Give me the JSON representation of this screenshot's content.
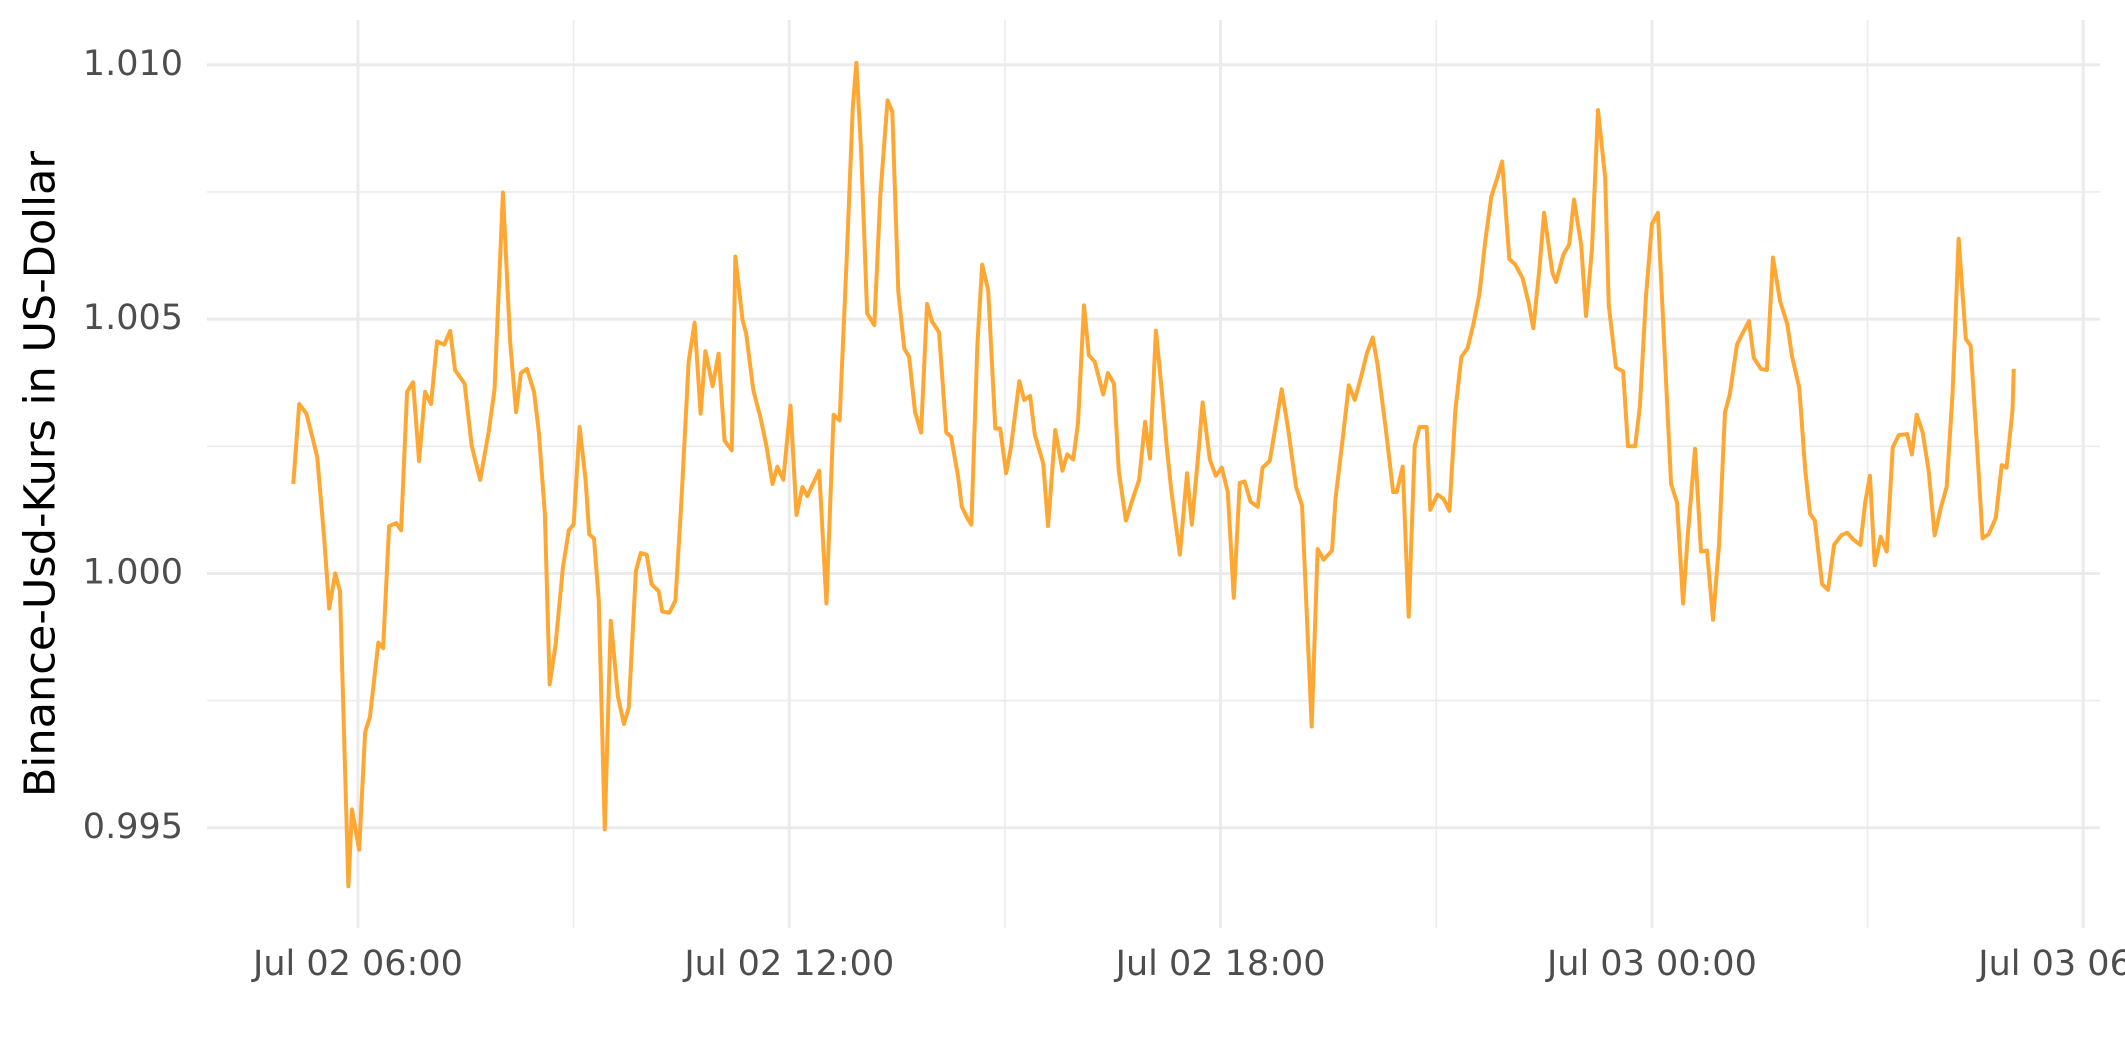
{
  "chart_data": {
    "type": "line",
    "y_label": "Binance-Usd-Kurs in US-Dollar",
    "color": "#ffa733",
    "grid": true,
    "xlim": [
      "Jul 02 03:54",
      "Jul 03 06:14"
    ],
    "xticks": [
      "Jul 02 06:00",
      "Jul 02 12:00",
      "Jul 02 18:00",
      "Jul 03 00:00",
      "Jul 03 06:00"
    ],
    "ylim": [
      0.99303,
      1.01088
    ],
    "yticks": [
      0.995,
      {
        "value": 1,
        "label": "1.000"
      },
      1.005,
      {
        "value": 1.01,
        "label": "1.010"
      }
    ],
    "x": [
      "Jul 02 05:06",
      "Jul 02 05:11",
      "Jul 02 05:17",
      "Jul 02 05:23",
      "Jul 02 05:26",
      "Jul 02 05:32",
      "Jul 02 05:36",
      "Jul 02 05:41",
      "Jul 02 05:45",
      "Jul 02 05:52",
      "Jul 02 05:55",
      "Jul 02 06:01",
      "Jul 02 06:06",
      "Jul 02 06:10",
      "Jul 02 06:17",
      "Jul 02 06:21",
      "Jul 02 06:26",
      "Jul 02 06:32",
      "Jul 02 06:36",
      "Jul 02 06:41",
      "Jul 02 06:46",
      "Jul 02 06:51",
      "Jul 02 06:56",
      "Jul 02 07:01",
      "Jul 02 07:06",
      "Jul 02 07:12",
      "Jul 02 07:17",
      "Jul 02 07:21",
      "Jul 02 07:29",
      "Jul 02 07:35",
      "Jul 02 07:42",
      "Jul 02 07:49",
      "Jul 02 07:54",
      "Jul 02 08:01",
      "Jul 02 08:07",
      "Jul 02 08:12",
      "Jul 02 08:16",
      "Jul 02 08:21",
      "Jul 02 08:27",
      "Jul 02 08:31",
      "Jul 02 08:36",
      "Jul 02 08:40",
      "Jul 02 08:45",
      "Jul 02 08:51",
      "Jul 02 08:56",
      "Jul 02 09:00",
      "Jul 02 09:05",
      "Jul 02 09:10",
      "Jul 02 09:13",
      "Jul 02 09:17",
      "Jul 02 09:21",
      "Jul 02 09:26",
      "Jul 02 09:31",
      "Jul 02 09:37",
      "Jul 02 09:42",
      "Jul 02 09:46",
      "Jul 02 09:52",
      "Jul 02 09:56",
      "Jul 02 10:01",
      "Jul 02 10:05",
      "Jul 02 10:11",
      "Jul 02 10:14",
      "Jul 02 10:20",
      "Jul 02 10:25",
      "Jul 02 10:30",
      "Jul 02 10:36",
      "Jul 02 10:41",
      "Jul 02 10:46",
      "Jul 02 10:50",
      "Jul 02 10:56",
      "Jul 02 11:01",
      "Jul 02 11:06",
      "Jul 02 11:12",
      "Jul 02 11:15",
      "Jul 02 11:21",
      "Jul 02 11:24",
      "Jul 02 11:30",
      "Jul 02 11:36",
      "Jul 02 11:41",
      "Jul 02 11:46",
      "Jul 02 11:50",
      "Jul 02 11:55",
      "Jul 02 12:01",
      "Jul 02 12:06",
      "Jul 02 12:11",
      "Jul 02 12:15",
      "Jul 02 12:25",
      "Jul 02 12:31",
      "Jul 02 12:37",
      "Jul 02 12:42",
      "Jul 02 12:48",
      "Jul 02 12:53",
      "Jul 02 12:56",
      "Jul 02 13:00",
      "Jul 02 13:05",
      "Jul 02 13:11",
      "Jul 02 13:16",
      "Jul 02 13:22",
      "Jul 02 13:26",
      "Jul 02 13:31",
      "Jul 02 13:36",
      "Jul 02 13:40",
      "Jul 02 13:45",
      "Jul 02 13:50",
      "Jul 02 13:55",
      "Jul 02 13:59",
      "Jul 02 14:05",
      "Jul 02 14:11",
      "Jul 02 14:15",
      "Jul 02 14:21",
      "Jul 02 14:24",
      "Jul 02 14:29",
      "Jul 02 14:32",
      "Jul 02 14:37",
      "Jul 02 14:41",
      "Jul 02 14:46",
      "Jul 02 14:52",
      "Jul 02 14:56",
      "Jul 02 15:01",
      "Jul 02 15:05",
      "Jul 02 15:12",
      "Jul 02 15:16",
      "Jul 02 15:21",
      "Jul 02 15:25",
      "Jul 02 15:32",
      "Jul 02 15:36",
      "Jul 02 15:42",
      "Jul 02 15:48",
      "Jul 02 15:52",
      "Jul 02 15:57",
      "Jul 02 16:01",
      "Jul 02 16:06",
      "Jul 02 16:10",
      "Jul 02 16:15",
      "Jul 02 16:22",
      "Jul 02 16:26",
      "Jul 02 16:31",
      "Jul 02 16:35",
      "Jul 02 16:41",
      "Jul 02 16:47",
      "Jul 02 16:52",
      "Jul 02 16:57",
      "Jul 02 17:01",
      "Jul 02 17:06",
      "Jul 02 17:11",
      "Jul 02 17:15",
      "Jul 02 17:19",
      "Jul 02 17:26",
      "Jul 02 17:32",
      "Jul 02 17:36",
      "Jul 02 17:41",
      "Jul 02 17:45",
      "Jul 02 17:51",
      "Jul 02 17:56",
      "Jul 02 18:01",
      "Jul 02 18:06",
      "Jul 02 18:11",
      "Jul 02 18:16",
      "Jul 02 18:20",
      "Jul 02 18:25",
      "Jul 02 18:31",
      "Jul 02 18:35",
      "Jul 02 18:41",
      "Jul 02 18:45",
      "Jul 02 18:51",
      "Jul 02 18:56",
      "Jul 02 19:03",
      "Jul 02 19:08",
      "Jul 02 19:16",
      "Jul 02 19:21",
      "Jul 02 19:26",
      "Jul 02 19:33",
      "Jul 02 19:36",
      "Jul 02 19:42",
      "Jul 02 19:47",
      "Jul 02 19:52",
      "Jul 02 19:57",
      "Jul 02 20:02",
      "Jul 02 20:07",
      "Jul 02 20:11",
      "Jul 02 20:18",
      "Jul 02 20:24",
      "Jul 02 20:27",
      "Jul 02 20:32",
      "Jul 02 20:37",
      "Jul 02 20:42",
      "Jul 02 20:46",
      "Jul 02 20:52",
      "Jul 02 20:55",
      "Jul 02 21:01",
      "Jul 02 21:06",
      "Jul 02 21:11",
      "Jul 02 21:16",
      "Jul 02 21:21",
      "Jul 02 21:26",
      "Jul 02 21:31",
      "Jul 02 21:36",
      "Jul 02 21:41",
      "Jul 02 21:46",
      "Jul 02 21:51",
      "Jul 02 21:55",
      "Jul 02 22:01",
      "Jul 02 22:06",
      "Jul 02 22:12",
      "Jul 02 22:17",
      "Jul 02 22:21",
      "Jul 02 22:26",
      "Jul 02 22:30",
      "Jul 02 22:37",
      "Jul 02 22:40",
      "Jul 02 22:46",
      "Jul 02 22:51",
      "Jul 02 22:55",
      "Jul 02 23:01",
      "Jul 02 23:05",
      "Jul 02 23:10",
      "Jul 02 23:15",
      "Jul 02 23:21",
      "Jul 02 23:24",
      "Jul 02 23:30",
      "Jul 02 23:36",
      "Jul 02 23:40",
      "Jul 02 23:46",
      "Jul 02 23:50",
      "Jul 02 23:55",
      "Jul 03 00:00",
      "Jul 03 00:05",
      "Jul 03 00:11",
      "Jul 03 00:16",
      "Jul 03 00:21",
      "Jul 03 00:26",
      "Jul 03 00:30",
      "Jul 03 00:36",
      "Jul 03 00:41",
      "Jul 03 00:46",
      "Jul 03 00:51",
      "Jul 03 00:56",
      "Jul 03 01:01",
      "Jul 03 01:05",
      "Jul 03 01:11",
      "Jul 03 01:15",
      "Jul 03 01:21",
      "Jul 03 01:25",
      "Jul 03 01:31",
      "Jul 03 01:36",
      "Jul 03 01:41",
      "Jul 03 01:47",
      "Jul 03 01:53",
      "Jul 03 01:57",
      "Jul 03 02:03",
      "Jul 03 02:08",
      "Jul 03 02:12",
      "Jul 03 02:16",
      "Jul 03 02:22",
      "Jul 03 02:27",
      "Jul 03 02:32",
      "Jul 03 02:38",
      "Jul 03 02:43",
      "Jul 03 02:48",
      "Jul 03 02:54",
      "Jul 03 02:58",
      "Jul 03 03:02",
      "Jul 03 03:06",
      "Jul 03 03:11",
      "Jul 03 03:16",
      "Jul 03 03:21",
      "Jul 03 03:26",
      "Jul 03 03:33",
      "Jul 03 03:37",
      "Jul 03 03:41",
      "Jul 03 03:46",
      "Jul 03 03:51",
      "Jul 03 03:56",
      "Jul 03 04:01",
      "Jul 03 04:06",
      "Jul 03 04:11",
      "Jul 03 04:16",
      "Jul 03 04:22",
      "Jul 03 04:26",
      "Jul 03 04:32",
      "Jul 03 04:36",
      "Jul 03 04:41",
      "Jul 03 04:47",
      "Jul 03 04:52",
      "Jul 03 04:56",
      "Jul 03 05:01",
      "Jul 03 05:02"
    ],
    "values": [
      1.00176,
      1.00333,
      1.00314,
      1.00258,
      1.00229,
      1.00064,
      0.99931,
      1.0,
      0.99965,
      0.99385,
      0.99536,
      0.99457,
      0.99688,
      0.99718,
      0.99864,
      0.99853,
      1.00093,
      1.00099,
      1.00085,
      1.00357,
      1.00376,
      1.00221,
      1.00357,
      1.00333,
      1.00456,
      1.0045,
      1.00477,
      1.004,
      1.00373,
      1.0025,
      1.00184,
      1.00277,
      1.00362,
      1.00749,
      1.00456,
      1.00317,
      1.00394,
      1.00402,
      1.00357,
      1.00277,
      1.00117,
      0.99782,
      0.99861,
      1.00011,
      1.00085,
      1.00096,
      1.00288,
      1.00184,
      1.00077,
      1.00069,
      0.99947,
      0.99497,
      0.99907,
      0.99758,
      0.99704,
      0.99736,
      1.00005,
      1.0004,
      1.00037,
      0.99979,
      0.99965,
      0.99925,
      0.99923,
      0.99947,
      1.00144,
      1.00416,
      1.00493,
      1.00314,
      1.00437,
      1.00368,
      1.00432,
      1.00261,
      1.00242,
      1.00623,
      1.00498,
      1.00472,
      1.0036,
      1.00306,
      1.0025,
      1.00176,
      1.0021,
      1.00184,
      1.0033,
      1.00115,
      1.0017,
      1.00152,
      1.00202,
      0.99941,
      1.00312,
      1.00301,
      1.00623,
      1.00916,
      1.01004,
      1.00829,
      1.00511,
      1.00488,
      1.00743,
      1.0093,
      1.00908,
      1.00554,
      1.00442,
      1.00426,
      1.00317,
      1.00277,
      1.0053,
      1.00496,
      1.00474,
      1.00277,
      1.00269,
      1.00189,
      1.00131,
      1.00107,
      1.00096,
      1.0045,
      1.00607,
      1.00557,
      1.00285,
      1.00285,
      1.00197,
      1.00248,
      1.00378,
      1.00341,
      1.00349,
      1.00272,
      1.00216,
      1.00093,
      1.00282,
      1.00202,
      1.00234,
      1.00224,
      1.00296,
      1.00527,
      1.00429,
      1.00416,
      1.00352,
      1.00394,
      1.00373,
      1.00202,
      1.00104,
      1.00149,
      1.00184,
      1.00298,
      1.00226,
      1.00477,
      1.00357,
      1.0025,
      1.0016,
      1.00037,
      1.00197,
      1.00096,
      1.00224,
      1.00336,
      1.00224,
      1.00192,
      1.00208,
      1.0016,
      0.99952,
      1.00178,
      1.00181,
      1.00141,
      1.00131,
      1.00208,
      1.00221,
      1.00277,
      1.00362,
      1.0029,
      1.0017,
      1.00133,
      0.99699,
      1.00048,
      1.00027,
      1.00045,
      1.00149,
      1.00266,
      1.0037,
      1.00341,
      1.00384,
      1.00432,
      1.00464,
      1.0041,
      1.00282,
      1.0016,
      1.0016,
      1.0021,
      0.99915,
      1.0025,
      1.00288,
      1.00288,
      1.00125,
      1.00155,
      1.00147,
      1.00123,
      1.00322,
      1.00426,
      1.00442,
      1.0049,
      1.00549,
      1.00655,
      1.00741,
      1.00778,
      1.0081,
      1.00618,
      1.00607,
      1.00581,
      1.00533,
      1.00482,
      1.00597,
      1.00709,
      1.00591,
      1.00573,
      1.00626,
      1.00647,
      1.00735,
      1.00645,
      1.00506,
      1.00639,
      1.00911,
      1.00778,
      1.00527,
      1.00405,
      1.00397,
      1.0025,
      1.0025,
      1.0033,
      1.00543,
      1.00687,
      1.00709,
      1.00416,
      1.00176,
      1.00139,
      0.99941,
      1.00077,
      1.00245,
      1.00043,
      1.00045,
      0.99909,
      1.00056,
      1.00317,
      1.00352,
      1.0045,
      1.00469,
      1.00496,
      1.00424,
      1.00402,
      1.004,
      1.00621,
      1.00535,
      1.0049,
      1.00426,
      1.00365,
      1.00202,
      1.00117,
      1.00104,
      0.99979,
      0.99968,
      1.00056,
      1.00075,
      1.0008,
      1.00067,
      1.00056,
      1.00139,
      1.00192,
      1.00016,
      1.00072,
      1.00043,
      1.00248,
      1.00272,
      1.00274,
      1.00234,
      1.00312,
      1.00277,
      1.00202,
      1.00075,
      1.00128,
      1.0017,
      1.00357,
      1.00658,
      1.00461,
      1.00448,
      1.00226,
      1.00069,
      1.00077,
      1.00109,
      1.00213,
      1.00208,
      1.00322,
      1.00402
    ]
  }
}
